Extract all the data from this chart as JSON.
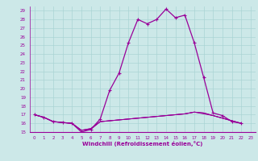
{
  "title": "",
  "xlabel": "Windchill (Refroidissement éolien,°C)",
  "bg_color": "#cce8e8",
  "line_color": "#990099",
  "grid_color": "#aad4d4",
  "xlim": [
    -0.5,
    23.5
  ],
  "ylim": [
    15,
    29.5
  ],
  "yticks": [
    15,
    16,
    17,
    18,
    19,
    20,
    21,
    22,
    23,
    24,
    25,
    26,
    27,
    28,
    29
  ],
  "xticks": [
    0,
    1,
    2,
    3,
    4,
    5,
    6,
    7,
    8,
    9,
    10,
    11,
    12,
    13,
    14,
    15,
    16,
    17,
    18,
    19,
    20,
    21,
    22,
    23
  ],
  "series_main": [
    17.0,
    16.7,
    16.2,
    16.1,
    16.0,
    15.0,
    15.3,
    16.5,
    19.8,
    21.8,
    25.3,
    28.0,
    27.5,
    28.0,
    29.2,
    28.2,
    28.5,
    25.3,
    21.3,
    17.2,
    16.9,
    16.2,
    16.0
  ],
  "series_flat": [
    [
      17.0,
      16.7,
      16.2,
      16.1,
      16.0,
      15.2,
      15.3,
      16.2,
      16.3,
      16.4,
      16.5,
      16.6,
      16.7,
      16.8,
      16.9,
      17.0,
      17.1,
      17.3,
      17.1,
      16.9,
      16.6,
      16.3,
      16.0
    ],
    [
      17.0,
      16.7,
      16.2,
      16.1,
      16.0,
      15.2,
      15.4,
      16.2,
      16.3,
      16.4,
      16.5,
      16.6,
      16.7,
      16.8,
      16.9,
      17.0,
      17.1,
      17.3,
      17.2,
      16.9,
      16.6,
      16.3,
      16.0
    ],
    [
      17.0,
      16.7,
      16.2,
      16.1,
      16.0,
      15.2,
      15.4,
      16.2,
      16.3,
      16.4,
      16.5,
      16.6,
      16.7,
      16.8,
      16.9,
      17.0,
      17.1,
      17.3,
      17.2,
      16.9,
      16.6,
      16.3,
      16.0
    ]
  ]
}
